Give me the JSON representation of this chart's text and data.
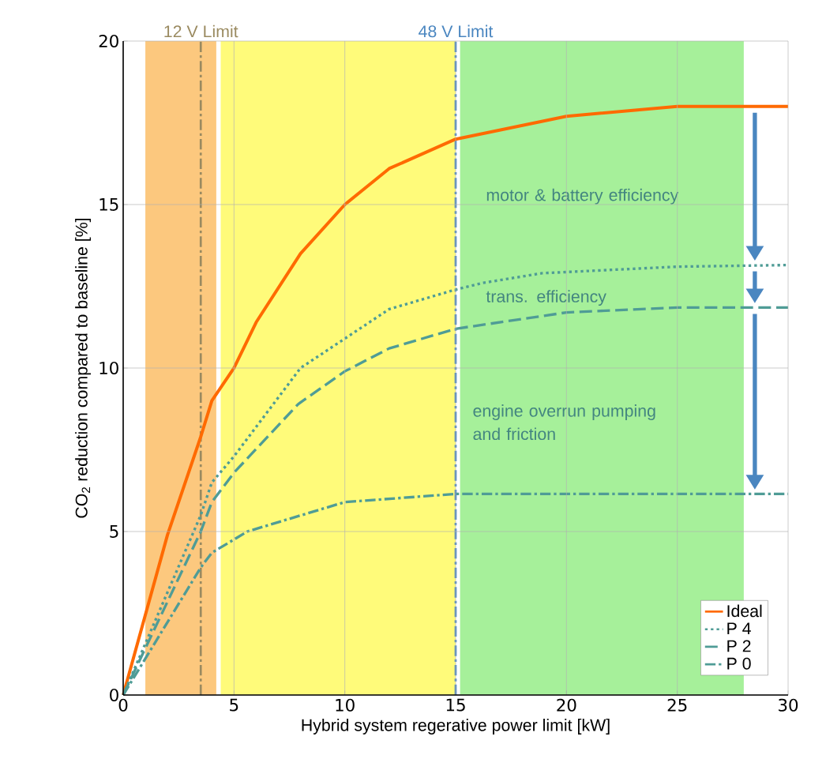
{
  "chart_data": {
    "type": "line",
    "xlabel": "Hybrid system regerative power limit [kW]",
    "ylabel": "CO$_{2}$ reduction compared to baseline [%]",
    "xlim": [
      0,
      30
    ],
    "ylim": [
      0,
      20
    ],
    "xticks": [
      0,
      5,
      10,
      15,
      20,
      25,
      30
    ],
    "yticks": [
      0,
      5,
      10,
      15,
      20
    ],
    "grid": true,
    "legend": "bottom right",
    "series": [
      {
        "name": "Ideal",
        "color": "#ff6a00",
        "line_style": "solid",
        "x": [
          0,
          2,
          3.5,
          4,
          5,
          6,
          8,
          10,
          12,
          15,
          20,
          25,
          30
        ],
        "values": [
          0,
          4.9,
          7.9,
          9.0,
          10.0,
          11.4,
          13.5,
          15.0,
          16.1,
          17.0,
          17.7,
          18.0,
          18.0
        ]
      },
      {
        "name": "P 4",
        "color": "#4f9c96",
        "line_style": "dotted",
        "x": [
          0,
          3.5,
          4,
          5,
          8,
          10,
          12,
          15,
          16.2,
          18.9,
          25,
          30
        ],
        "values": [
          0,
          5.5,
          6.5,
          7.3,
          10.0,
          10.9,
          11.8,
          12.4,
          12.6,
          12.9,
          13.1,
          13.15
        ]
      },
      {
        "name": "P 2",
        "color": "#4f9c96",
        "line_style": "dashed",
        "x": [
          0,
          3.5,
          4,
          5,
          7.9,
          10,
          12,
          15,
          20,
          25,
          30
        ],
        "values": [
          0,
          5.0,
          5.9,
          6.8,
          8.9,
          9.9,
          10.6,
          11.2,
          11.7,
          11.85,
          11.85
        ]
      },
      {
        "name": "P 0",
        "color": "#4f9c96",
        "line_style": "dashdot",
        "x": [
          0,
          3.5,
          4,
          5.6,
          10,
          15,
          20,
          30
        ],
        "values": [
          0,
          3.9,
          4.35,
          5.0,
          5.9,
          6.15,
          6.15,
          6.15
        ]
      }
    ],
    "ref_lines": [
      {
        "axis": "x",
        "value": 3.5,
        "label": "12 V Limit",
        "color": "#9a8a60",
        "line_style": "dashdot"
      },
      {
        "axis": "x",
        "value": 15,
        "label": "48 V Limit",
        "color": "#4a86c0",
        "line_style": "dashdot"
      }
    ],
    "bands": [
      {
        "axis": "x",
        "from": 1,
        "to": 4.2,
        "color": "#fcc87e"
      },
      {
        "axis": "x",
        "from": 4.4,
        "to": 15,
        "color": "#fffb7a"
      },
      {
        "axis": "x",
        "from": 15.2,
        "to": 28,
        "color": "#a6f09a"
      }
    ],
    "annotations": [
      "motor & battery efficiency",
      "trans. efficiency",
      "engine overrun pumping and friction"
    ]
  }
}
